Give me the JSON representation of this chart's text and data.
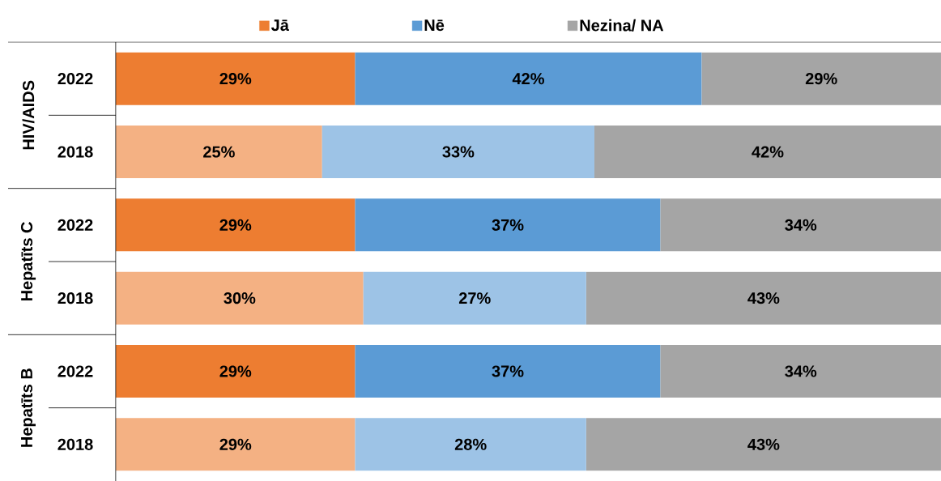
{
  "chart_data": {
    "type": "bar",
    "orientation": "horizontal",
    "stacked": true,
    "categories": [
      "2022",
      "2018",
      "2022",
      "2018",
      "2022",
      "2018"
    ],
    "series": [
      {
        "name": "Jā",
        "colors": [
          "#ed7d31",
          "#f4b183",
          "#ed7d31",
          "#f4b183",
          "#ed7d31",
          "#f4b183"
        ],
        "values": [
          29,
          25,
          29,
          30,
          29,
          29
        ],
        "value_labels": [
          "29%",
          "25%",
          "29%",
          "30%",
          "29%",
          "29%"
        ]
      },
      {
        "name": "Nē",
        "colors": [
          "#5b9bd5",
          "#9dc3e6",
          "#5b9bd5",
          "#9dc3e6",
          "#5b9bd5",
          "#9dc3e6"
        ],
        "values": [
          42,
          33,
          37,
          27,
          37,
          28
        ],
        "value_labels": [
          "42%",
          "33%",
          "37%",
          "27%",
          "37%",
          "28%"
        ]
      },
      {
        "name": "Nezina/ NA",
        "colors": [
          "#a5a5a5",
          "#a5a5a5",
          "#a5a5a5",
          "#a5a5a5",
          "#a5a5a5",
          "#a5a5a5"
        ],
        "values": [
          29,
          42,
          34,
          43,
          34,
          43
        ],
        "value_labels": [
          "29%",
          "42%",
          "34%",
          "43%",
          "34%",
          "43%"
        ]
      }
    ],
    "xlim": [
      0,
      100
    ],
    "tick_labels": "y",
    "legend": "top",
    "annotations": [
      "HIV/AIDS",
      "Hepatīts C",
      "Hepatīts B"
    ]
  }
}
